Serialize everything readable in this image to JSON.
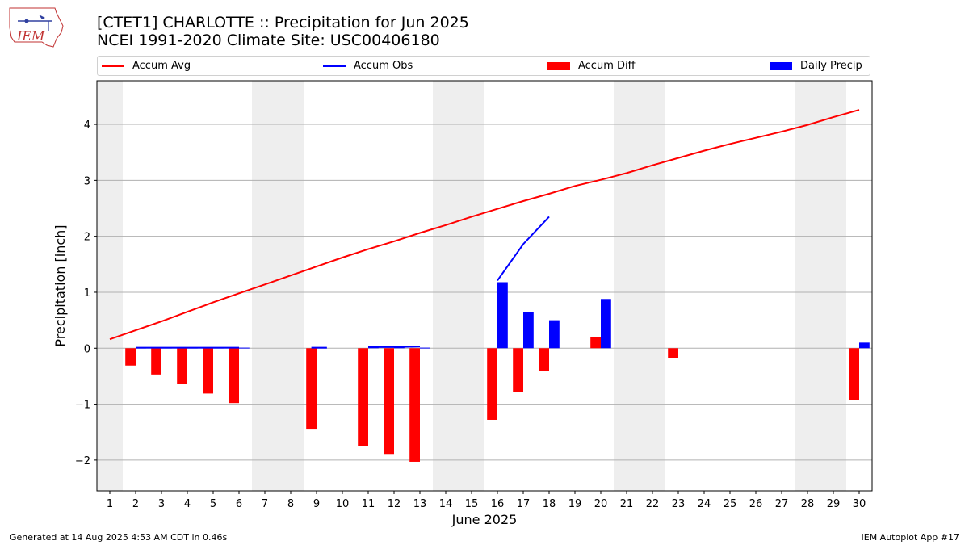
{
  "header": {
    "title_line1": "[CTET1] CHARLOTTE :: Precipitation for Jun 2025",
    "title_line2": "NCEI 1991-2020 Climate Site: USC00406180",
    "logo_text": "IEM"
  },
  "legend": {
    "items": [
      {
        "label": "Accum Avg",
        "color": "#ff0000",
        "kind": "line"
      },
      {
        "label": "Accum Obs",
        "color": "#0000ff",
        "kind": "line"
      },
      {
        "label": "Accum Diff",
        "color": "#ff0000",
        "kind": "box"
      },
      {
        "label": "Daily Precip",
        "color": "#0000ff",
        "kind": "box"
      }
    ]
  },
  "footer": {
    "left": "Generated at 14 Aug 2025 4:53 AM CDT in 0.46s",
    "right": "IEM Autoplot App #17"
  },
  "chart_data": {
    "type": "bar",
    "xlabel": "June 2025",
    "ylabel": "Precipitation [inch]",
    "ylim": [
      -2.55,
      4.78
    ],
    "yticks": [
      -2,
      -1,
      0,
      1,
      2,
      3,
      4
    ],
    "days": [
      1,
      2,
      3,
      4,
      5,
      6,
      7,
      8,
      9,
      10,
      11,
      12,
      13,
      14,
      15,
      16,
      17,
      18,
      19,
      20,
      21,
      22,
      23,
      24,
      25,
      26,
      27,
      28,
      29,
      30
    ],
    "weekend_shading": [
      [
        1,
        1
      ],
      [
        7,
        8
      ],
      [
        14,
        15
      ],
      [
        21,
        22
      ],
      [
        28,
        29
      ]
    ],
    "accum_avg": [
      0.16,
      0.32,
      0.48,
      0.65,
      0.82,
      0.98,
      1.14,
      1.3,
      1.46,
      1.62,
      1.77,
      1.91,
      2.06,
      2.2,
      2.35,
      2.49,
      2.63,
      2.76,
      2.9,
      3.01,
      3.13,
      3.27,
      3.4,
      3.53,
      3.65,
      3.76,
      3.87,
      3.99,
      4.13,
      4.26
    ],
    "accum_obs": [
      {
        "days": [
          2,
          3,
          4,
          5,
          6
        ],
        "values": [
          0.01,
          0.01,
          0.01,
          0.01,
          0.01
        ]
      },
      {
        "days": [
          9
        ],
        "values": [
          0.01
        ]
      },
      {
        "days": [
          11,
          12,
          13
        ],
        "values": [
          0.02,
          0.02,
          0.03
        ]
      },
      {
        "days": [
          16,
          17,
          18
        ],
        "values": [
          1.21,
          1.86,
          2.35
        ]
      }
    ],
    "accum_diff": [
      {
        "day": 2,
        "value": -0.31
      },
      {
        "day": 3,
        "value": -0.47
      },
      {
        "day": 4,
        "value": -0.64
      },
      {
        "day": 5,
        "value": -0.81
      },
      {
        "day": 6,
        "value": -0.98
      },
      {
        "day": 9,
        "value": -1.44
      },
      {
        "day": 11,
        "value": -1.75
      },
      {
        "day": 12,
        "value": -1.89
      },
      {
        "day": 13,
        "value": -2.03
      },
      {
        "day": 16,
        "value": -1.28
      },
      {
        "day": 17,
        "value": -0.78
      },
      {
        "day": 18,
        "value": -0.41
      },
      {
        "day": 20,
        "value": 0.2
      },
      {
        "day": 23,
        "value": -0.18
      },
      {
        "day": 30,
        "value": -0.93
      }
    ],
    "daily_precip": [
      {
        "day": 2,
        "value": 0.01
      },
      {
        "day": 3,
        "value": 0.01
      },
      {
        "day": 4,
        "value": 0.01
      },
      {
        "day": 5,
        "value": 0.01
      },
      {
        "day": 6,
        "value": 0.01
      },
      {
        "day": 9,
        "value": 0.01
      },
      {
        "day": 11,
        "value": 0.02
      },
      {
        "day": 12,
        "value": 0.02
      },
      {
        "day": 13,
        "value": 0.01
      },
      {
        "day": 16,
        "value": 1.18
      },
      {
        "day": 17,
        "value": 0.64
      },
      {
        "day": 18,
        "value": 0.5
      },
      {
        "day": 20,
        "value": 0.88
      },
      {
        "day": 30,
        "value": 0.1
      }
    ],
    "grid": "y"
  }
}
